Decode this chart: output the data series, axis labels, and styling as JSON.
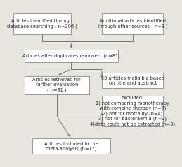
{
  "bg_color": "#e8e4de",
  "box_facecolor": "#ffffff",
  "box_edgecolor": "#888888",
  "line_color": "#666666",
  "fontsize": 4.8,
  "lw": 0.6,
  "box_db": [
    0.03,
    0.82,
    0.36,
    0.14,
    "Articles identified through\ndatabase searching ( n=206 )"
  ],
  "box_os": [
    0.58,
    0.82,
    0.38,
    0.14,
    "Additional articles identified\nthrough other sources ( n=9 )"
  ],
  "box_dup": [
    0.1,
    0.64,
    0.58,
    0.08,
    "Articles after duplicates removed  (n=81)"
  ],
  "box_ret": [
    0.1,
    0.43,
    0.4,
    0.12,
    "Articles retrieved for\nfurther evaluation\n( n=31 )"
  ],
  "box_inel": [
    0.58,
    0.47,
    0.38,
    0.1,
    "50 articles ineligible based\non title and abstract"
  ],
  "box_excl": [
    0.58,
    0.22,
    0.38,
    0.2,
    "excluded:\n1) not comparing monotherapy\nwith combine therapy (n=5)\n2) not for mortality (n=4)\n3) not for bacteraemia (n=2)\n4)data could not be extracted (n=3)"
  ],
  "box_inc": [
    0.15,
    0.04,
    0.48,
    0.1,
    "Articles included in the\nmeta-analysis (n=17)"
  ]
}
